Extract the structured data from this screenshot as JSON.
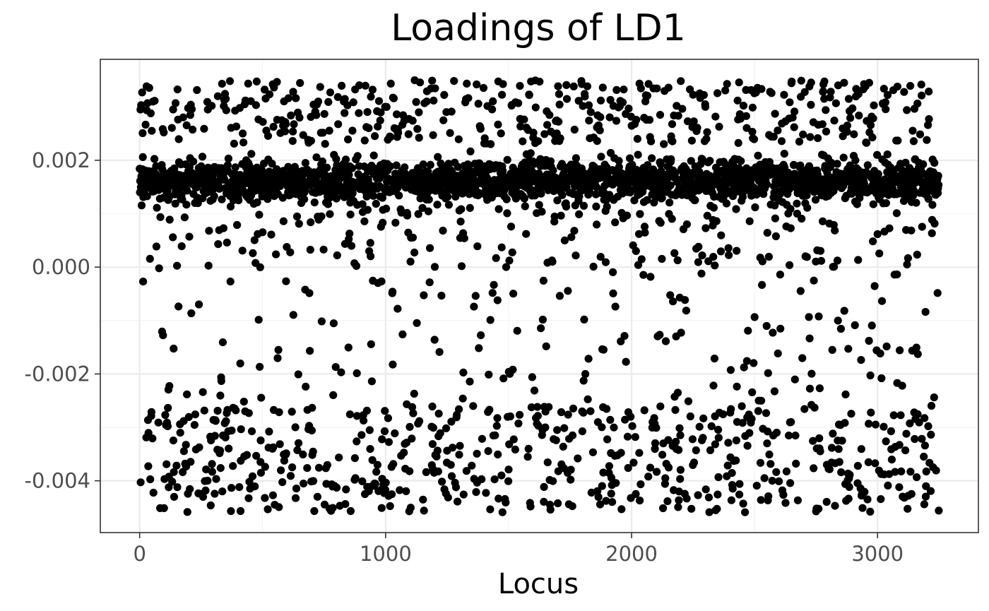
{
  "chart_data": {
    "type": "scatter",
    "title": "Loadings of LD1",
    "xlabel": "Locus",
    "ylabel": "",
    "xlim": [
      -160,
      3410
    ],
    "ylim": [
      -0.00497,
      0.00389
    ],
    "x_ticks": [
      0,
      1000,
      2000,
      3000
    ],
    "x_tick_labels": [
      "0",
      "1000",
      "2000",
      "3000"
    ],
    "y_ticks": [
      -0.004,
      -0.002,
      0.0,
      0.002
    ],
    "y_tick_labels": [
      "-0.004",
      "-0.002",
      "0.000",
      "0.002"
    ],
    "grid": true,
    "legend": "none",
    "n_loci": 3250,
    "point_color": "#000000",
    "series": [
      {
        "clusters": [
          {
            "y_center": 0.0016,
            "y_spread": 0.0004,
            "share": 0.56
          },
          {
            "y_min": 0.0023,
            "y_max": 0.0035,
            "share": 0.14
          },
          {
            "y_min": 0.0,
            "y_max": 0.0012,
            "share": 0.06
          },
          {
            "y_min": -0.0026,
            "y_max": 0.0,
            "share": 0.06
          },
          {
            "y_min": -0.0046,
            "y_max": -0.0026,
            "share": 0.18
          }
        ]
      }
    ]
  }
}
